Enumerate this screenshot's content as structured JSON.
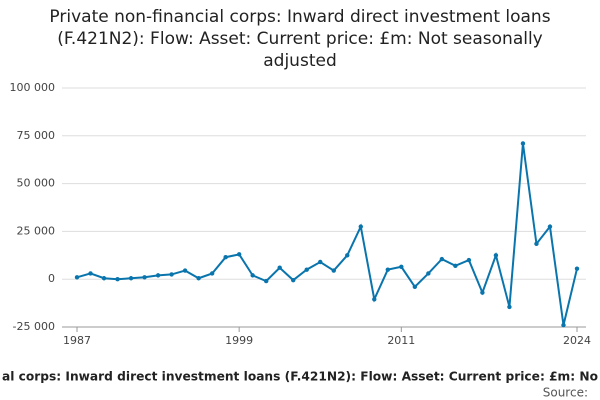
{
  "chart_data": {
    "type": "line",
    "title": "Private non-financial corps: Inward direct investment loans (F.421N2): Flow: Asset: Current price: £m: Not seasonally adjusted",
    "x_label": "al corps: Inward direct investment loans (F.421N2): Flow: Asset: Current price: £m: No",
    "source": "Source:",
    "x": [
      1987,
      1988,
      1989,
      1990,
      1991,
      1992,
      1993,
      1994,
      1995,
      1996,
      1997,
      1998,
      1999,
      2000,
      2001,
      2002,
      2003,
      2004,
      2005,
      2006,
      2007,
      2008,
      2009,
      2010,
      2011,
      2012,
      2013,
      2014,
      2015,
      2016,
      2017,
      2018,
      2019,
      2020,
      2021,
      2022,
      2023,
      2024
    ],
    "series": [
      {
        "name": "Private non-financial corps",
        "color": "#0a75ad",
        "values": [
          1000,
          3000,
          500,
          0,
          500,
          1000,
          2000,
          2500,
          4500,
          500,
          3000,
          11500,
          13000,
          2000,
          -1000,
          6000,
          -500,
          5000,
          9000,
          4500,
          12500,
          27500,
          -10500,
          5000,
          6500,
          -4000,
          3000,
          10500,
          7000,
          10000,
          -7000,
          12500,
          -14500,
          71000,
          18500,
          27500,
          -24000,
          5500
        ]
      }
    ],
    "xlim": [
      1987,
      2024
    ],
    "xticks": [
      1987,
      1999,
      2011,
      2024
    ],
    "ylim": [
      -25000,
      100000
    ],
    "yticks": [
      {
        "value": -25000,
        "label": "-25 000"
      },
      0,
      {
        "value": 25000,
        "label": "25 000"
      },
      {
        "value": 50000,
        "label": "50 000"
      },
      {
        "value": 75000,
        "label": "75 000"
      },
      {
        "value": 100000,
        "label": "100 000"
      }
    ],
    "grid": true
  }
}
